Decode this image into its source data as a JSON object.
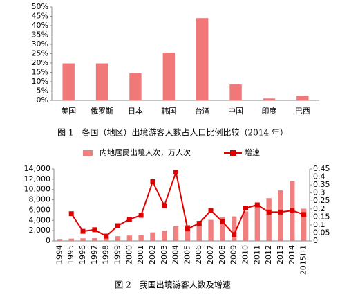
{
  "chart_data": [
    {
      "type": "bar",
      "title": "图 1　各国（地区）出境游客人数占人口比例比较（2014 年）",
      "categories": [
        "美国",
        "俄罗斯",
        "日本",
        "韩国",
        "台湾",
        "中国",
        "印度",
        "巴西"
      ],
      "values": [
        19.8,
        19.8,
        14.5,
        25.5,
        44,
        8.5,
        1,
        2.5
      ],
      "color": "#f07878",
      "ylim": [
        0,
        50
      ],
      "yticks": [
        {
          "value": 0,
          "label": "0%"
        },
        {
          "value": 5,
          "label": "5%"
        },
        {
          "value": 10,
          "label": "10%"
        },
        {
          "value": 15,
          "label": "15%"
        },
        {
          "value": 20,
          "label": "20%"
        },
        {
          "value": 25,
          "label": "25%"
        },
        {
          "value": 30,
          "label": "30%"
        },
        {
          "value": 35,
          "label": "35%"
        },
        {
          "value": 40,
          "label": "40%"
        },
        {
          "value": 45,
          "label": "45%"
        },
        {
          "value": 50,
          "label": "50%"
        }
      ]
    },
    {
      "type": "combo",
      "title": "图 2　我国出境游客人数及增速",
      "categories": [
        "1994",
        "1995",
        "1996",
        "1997",
        "1998",
        "1999",
        "2000",
        "2001",
        "2002",
        "2003",
        "2004",
        "2005",
        "2006",
        "2007",
        "2008",
        "2009",
        "2010",
        "2011",
        "2012",
        "2013",
        "2014",
        "2015H1"
      ],
      "series": [
        {
          "name": "内地居民出境人次，万人次",
          "type": "bar",
          "color": "#f08080",
          "values": [
            370,
            452,
            506,
            532,
            843,
            923,
            1047,
            1213,
            1660,
            2022,
            2885,
            3103,
            3452,
            4095,
            4584,
            4766,
            5739,
            7025,
            8318,
            9819,
            11659,
            6270
          ]
        },
        {
          "name": "增速",
          "type": "line",
          "axis": "y2",
          "color": "#e00000",
          "values": [
            null,
            0.17,
            0.06,
            0.07,
            0.03,
            0.095,
            0.135,
            0.16,
            0.37,
            0.22,
            0.43,
            0.075,
            0.11,
            0.19,
            0.12,
            0.04,
            0.205,
            0.225,
            0.18,
            0.18,
            0.19,
            0.165
          ]
        }
      ],
      "ylim": [
        0,
        14000
      ],
      "yticks": [
        0,
        {
          "value": 2000,
          "label": "2,000"
        },
        {
          "value": 4000,
          "label": "4,000"
        },
        {
          "value": 6000,
          "label": "6,000"
        },
        {
          "value": 8000,
          "label": "8,000"
        },
        {
          "value": 10000,
          "label": "10,000"
        },
        {
          "value": 12000,
          "label": "12,000"
        },
        {
          "value": 14000,
          "label": "14,000"
        }
      ],
      "y2lim": [
        0,
        0.45
      ],
      "y2ticks": [
        0,
        0.05,
        0.1,
        0.15,
        0.2,
        0.25,
        0.3,
        0.35,
        0.4,
        0.45
      ]
    }
  ]
}
